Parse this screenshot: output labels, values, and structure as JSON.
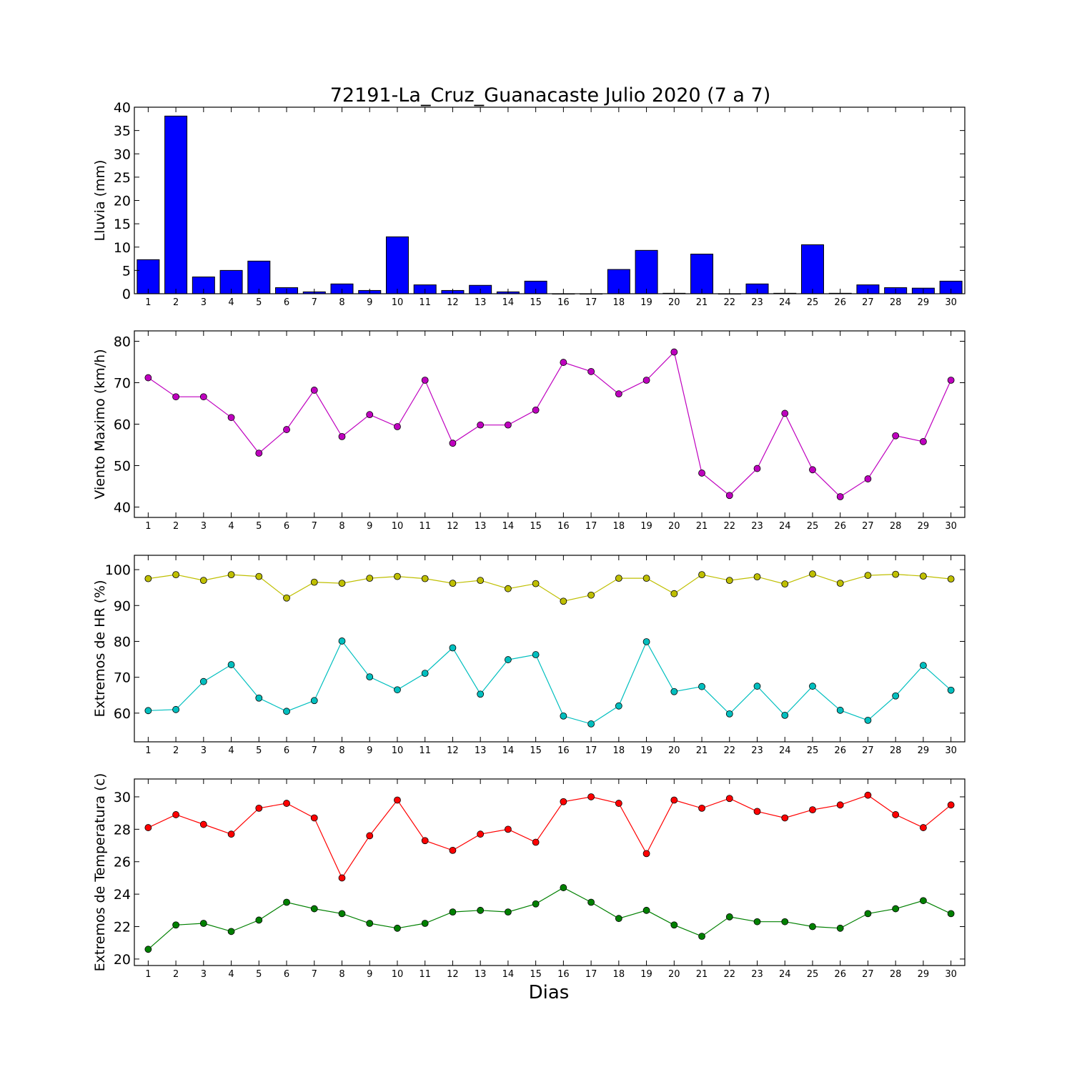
{
  "figure": {
    "title": "72191-La_Cruz_Guanacaste Julio 2020  (7 a 7)",
    "xlabel": "Dias"
  },
  "chart_data": [
    {
      "type": "bar",
      "id": "lluvia",
      "title": "72191-La_Cruz_Guanacaste Julio 2020  (7 a 7)",
      "xlabel": "",
      "ylabel": "Lluvia (mm)",
      "categories": [
        "1",
        "2",
        "3",
        "4",
        "5",
        "6",
        "7",
        "8",
        "9",
        "10",
        "11",
        "12",
        "13",
        "14",
        "15",
        "16",
        "17",
        "18",
        "19",
        "20",
        "21",
        "22",
        "23",
        "24",
        "25",
        "26",
        "27",
        "28",
        "29",
        "30"
      ],
      "ylim": [
        0,
        40
      ],
      "yticks": [
        0,
        5,
        10,
        15,
        20,
        25,
        30,
        35,
        40
      ],
      "series": [
        {
          "color": "#0000ff",
          "values": [
            7.3,
            38.1,
            3.6,
            5.0,
            7.0,
            1.3,
            0.4,
            2.1,
            0.7,
            12.2,
            1.9,
            0.7,
            1.8,
            0.4,
            2.7,
            0.0,
            0.0,
            5.2,
            9.3,
            0.1,
            8.5,
            0.0,
            2.1,
            0.1,
            10.5,
            0.1,
            1.9,
            1.3,
            1.2,
            2.7
          ]
        }
      ]
    },
    {
      "type": "line",
      "id": "viento",
      "xlabel": "",
      "ylabel": "Viento Maximo (km/h)",
      "categories": [
        "1",
        "2",
        "3",
        "4",
        "5",
        "6",
        "7",
        "8",
        "9",
        "10",
        "11",
        "12",
        "13",
        "14",
        "15",
        "16",
        "17",
        "18",
        "19",
        "20",
        "21",
        "22",
        "23",
        "24",
        "25",
        "26",
        "27",
        "28",
        "29",
        "30"
      ],
      "ylim": [
        37.5,
        82.5
      ],
      "yticks": [
        40,
        50,
        60,
        70,
        80
      ],
      "series": [
        {
          "color": "#bf00bf",
          "values": [
            71.2,
            66.6,
            66.6,
            61.6,
            53.0,
            58.7,
            68.2,
            57.0,
            62.3,
            59.4,
            70.6,
            55.4,
            59.8,
            59.8,
            63.4,
            74.9,
            72.7,
            67.3,
            70.6,
            77.4,
            48.2,
            42.8,
            49.3,
            62.6,
            49.0,
            42.5,
            46.8,
            57.2,
            55.8,
            70.6
          ]
        }
      ]
    },
    {
      "type": "line",
      "id": "hr",
      "xlabel": "",
      "ylabel": "Extremos de HR (%)",
      "categories": [
        "1",
        "2",
        "3",
        "4",
        "5",
        "6",
        "7",
        "8",
        "9",
        "10",
        "11",
        "12",
        "13",
        "14",
        "15",
        "16",
        "17",
        "18",
        "19",
        "20",
        "21",
        "22",
        "23",
        "24",
        "25",
        "26",
        "27",
        "28",
        "29",
        "30"
      ],
      "ylim": [
        52,
        104
      ],
      "yticks": [
        60,
        70,
        80,
        90,
        100
      ],
      "series": [
        {
          "color": "#bfbf00",
          "values": [
            97.5,
            98.6,
            97.0,
            98.6,
            98.1,
            92.1,
            96.5,
            96.2,
            97.6,
            98.1,
            97.5,
            96.2,
            97.0,
            94.7,
            96.1,
            91.2,
            92.9,
            97.6,
            97.6,
            93.3,
            98.6,
            97.0,
            98.0,
            96.0,
            98.8,
            96.2,
            98.4,
            98.7,
            98.2,
            97.4
          ]
        },
        {
          "color": "#00bfbf",
          "values": [
            60.7,
            61.0,
            68.8,
            73.5,
            64.2,
            60.5,
            63.5,
            80.1,
            70.1,
            66.5,
            71.1,
            78.2,
            65.3,
            74.9,
            76.3,
            59.2,
            57.0,
            62.0,
            79.9,
            66.0,
            67.4,
            59.8,
            67.5,
            59.4,
            67.5,
            60.8,
            58.0,
            64.8,
            73.3,
            66.4
          ]
        }
      ]
    },
    {
      "type": "line",
      "id": "temperatura",
      "xlabel": "Dias",
      "ylabel": "Extremos de Temperatura (c)",
      "categories": [
        "1",
        "2",
        "3",
        "4",
        "5",
        "6",
        "7",
        "8",
        "9",
        "10",
        "11",
        "12",
        "13",
        "14",
        "15",
        "16",
        "17",
        "18",
        "19",
        "20",
        "21",
        "22",
        "23",
        "24",
        "25",
        "26",
        "27",
        "28",
        "29",
        "30"
      ],
      "ylim": [
        19.6,
        31.1
      ],
      "yticks": [
        20,
        22,
        24,
        26,
        28,
        30
      ],
      "series": [
        {
          "color": "#ff0000",
          "values": [
            28.1,
            28.9,
            28.3,
            27.7,
            29.3,
            29.6,
            28.7,
            25.0,
            27.6,
            29.8,
            27.3,
            26.7,
            27.7,
            28.0,
            27.2,
            29.7,
            30.0,
            29.6,
            26.5,
            29.8,
            29.3,
            29.9,
            29.1,
            28.7,
            29.2,
            29.5,
            30.1,
            28.9,
            28.1,
            29.5
          ]
        },
        {
          "color": "#008000",
          "values": [
            20.6,
            22.1,
            22.2,
            21.7,
            22.4,
            23.5,
            23.1,
            22.8,
            22.2,
            21.9,
            22.2,
            22.9,
            23.0,
            22.9,
            23.4,
            24.4,
            23.5,
            22.5,
            23.0,
            22.1,
            21.4,
            22.6,
            22.3,
            22.3,
            22.0,
            21.9,
            22.8,
            23.1,
            23.6,
            22.8
          ]
        }
      ]
    }
  ]
}
